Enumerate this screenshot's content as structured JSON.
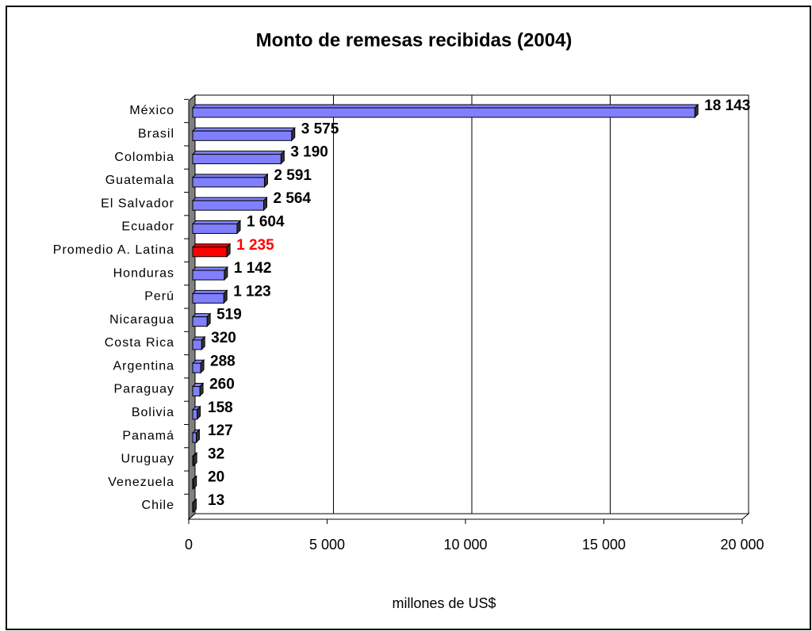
{
  "chart_data": {
    "type": "bar",
    "orientation": "horizontal",
    "title": "Monto de remesas recibidas (2004)",
    "x_label": "millones de US$",
    "categories": [
      "México",
      "Brasil",
      "Colombia",
      "Guatemala",
      "El Salvador",
      "Ecuador",
      "Promedio A. Latina",
      "Honduras",
      "Perú",
      "Nicaragua",
      "Costa Rica",
      "Argentina",
      "Paraguay",
      "Bolivia",
      "Panamá",
      "Uruguay",
      "Venezuela",
      "Chile"
    ],
    "values": [
      18143,
      3575,
      3190,
      2591,
      2564,
      1604,
      1235,
      1142,
      1123,
      519,
      320,
      288,
      260,
      158,
      127,
      32,
      20,
      13
    ],
    "value_labels": [
      "18 143",
      "3 575",
      "3 190",
      "2 591",
      "2 564",
      "1 604",
      "1 235",
      "1 142",
      "1 123",
      "519",
      "320",
      "288",
      "260",
      "158",
      "127",
      "32",
      "20",
      "13"
    ],
    "colors": [
      "#8080ff",
      "#8080ff",
      "#8080ff",
      "#8080ff",
      "#8080ff",
      "#8080ff",
      "#ff0000",
      "#8080ff",
      "#8080ff",
      "#8080ff",
      "#8080ff",
      "#8080ff",
      "#8080ff",
      "#8080ff",
      "#8080ff",
      "#8080ff",
      "#8080ff",
      "#8080ff"
    ],
    "xlim": [
      0,
      20000
    ],
    "xticks": [
      0,
      {
        "value": 5000,
        "label": "5 000"
      },
      {
        "value": 10000,
        "label": "10 000"
      },
      {
        "value": 15000,
        "label": "15 000"
      },
      {
        "value": 20000,
        "label": "20 000"
      }
    ],
    "grid": true
  }
}
